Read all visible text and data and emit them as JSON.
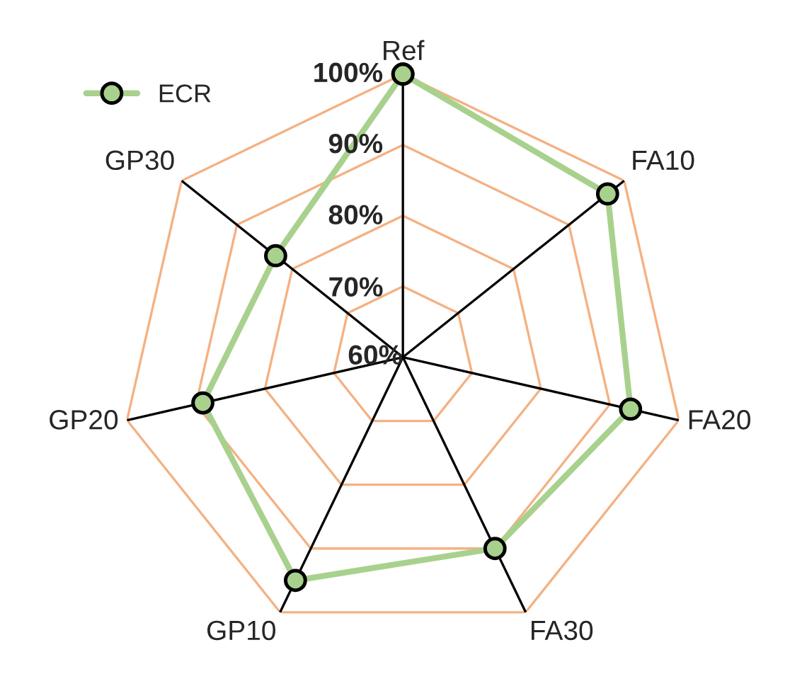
{
  "chart_data": {
    "type": "radar",
    "categories": [
      "Ref",
      "FA10",
      "FA20",
      "FA30",
      "GP10",
      "GP20",
      "GP30"
    ],
    "series": [
      {
        "name": "ECR",
        "color": "#a9d18e",
        "values": [
          100,
          97,
          93,
          90,
          95,
          89,
          83
        ]
      }
    ],
    "ylim": [
      60,
      100
    ],
    "yticks": [
      {
        "value": 60,
        "label": "60%"
      },
      {
        "value": 70,
        "label": "70%"
      },
      {
        "value": 80,
        "label": "80%"
      },
      {
        "value": 90,
        "label": "90%"
      },
      {
        "value": 100,
        "label": "100%"
      }
    ],
    "grid": true,
    "legend": "top left",
    "marker": "circle",
    "line_style": "solid"
  }
}
